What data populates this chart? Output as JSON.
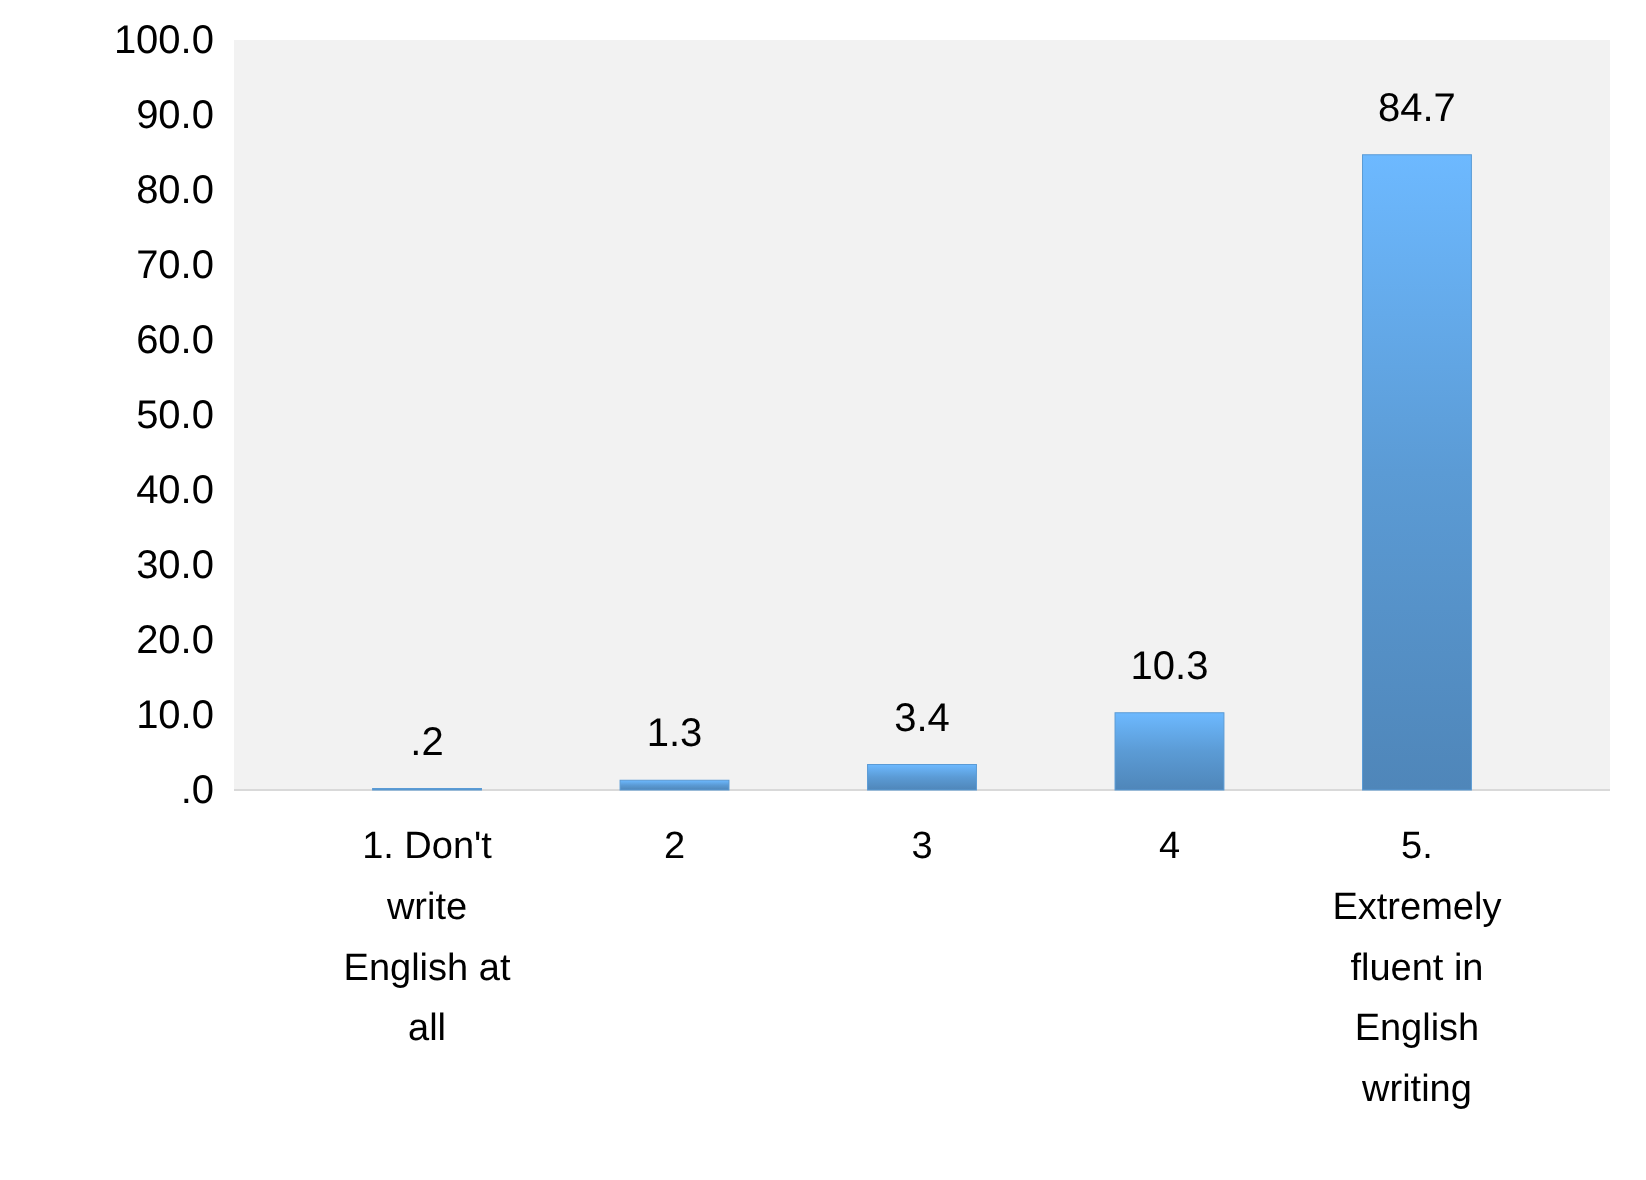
{
  "chart_data": {
    "type": "bar",
    "categories": [
      "1. Don't write English at all",
      "2",
      "3",
      "4",
      "5. Extremely fluent in English writing"
    ],
    "values": [
      0.2,
      1.3,
      3.4,
      10.3,
      84.7
    ],
    "value_labels": [
      ".2",
      "1.3",
      "3.4",
      "10.3",
      "84.7"
    ],
    "color": "#5b9bd5",
    "ylim": [
      0,
      100
    ],
    "yticks": [
      {
        "value": 0,
        "label": ".0"
      },
      {
        "value": 10,
        "label": "10.0"
      },
      {
        "value": 20,
        "label": "20.0"
      },
      {
        "value": 30,
        "label": "30.0"
      },
      {
        "value": 40,
        "label": "40.0"
      },
      {
        "value": 50,
        "label": "50.0"
      },
      {
        "value": 60,
        "label": "60.0"
      },
      {
        "value": 70,
        "label": "70.0"
      },
      {
        "value": 80,
        "label": "80.0"
      },
      {
        "value": 90,
        "label": "90.0"
      },
      {
        "value": 100,
        "label": "100.0"
      }
    ],
    "grid": false
  }
}
